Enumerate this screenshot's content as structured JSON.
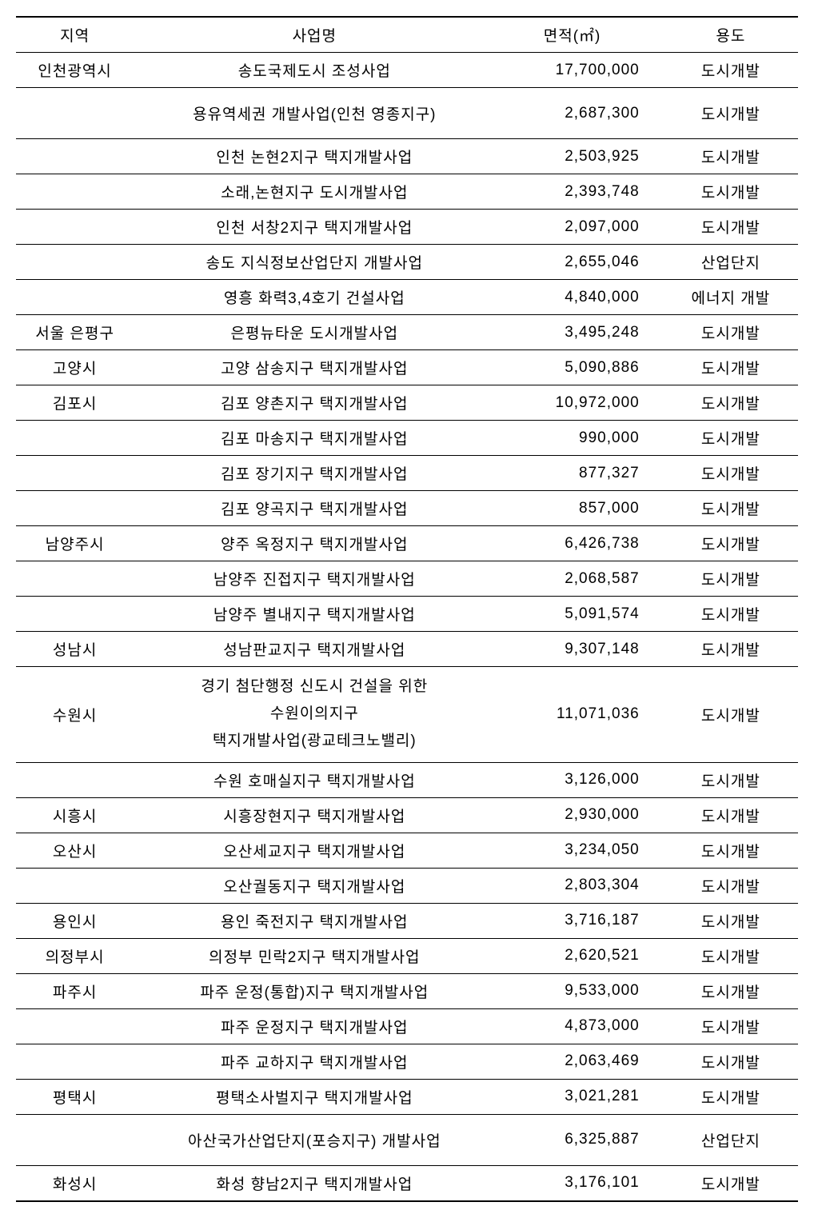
{
  "table": {
    "headers": {
      "region": "지역",
      "project": "사업명",
      "area": "면적(㎡)",
      "use": "용도"
    },
    "rows": [
      {
        "region": "인천광역시",
        "project": "송도국제도시 조성사업",
        "area": "17,700,000",
        "use": "도시개발",
        "tall": false
      },
      {
        "region": "",
        "project": "용유역세권 개발사업(인천 영종지구)",
        "area": "2,687,300",
        "use": "도시개발",
        "tall": true
      },
      {
        "region": "",
        "project": "인천 논현2지구 택지개발사업",
        "area": "2,503,925",
        "use": "도시개발",
        "tall": false
      },
      {
        "region": "",
        "project": "소래,논현지구 도시개발사업",
        "area": "2,393,748",
        "use": "도시개발",
        "tall": false
      },
      {
        "region": "",
        "project": "인천 서창2지구 택지개발사업",
        "area": "2,097,000",
        "use": "도시개발",
        "tall": false
      },
      {
        "region": "",
        "project": "송도 지식정보산업단지 개발사업",
        "area": "2,655,046",
        "use": "산업단지",
        "tall": false
      },
      {
        "region": "",
        "project": "영흥 화력3,4호기 건설사업",
        "area": "4,840,000",
        "use": "에너지 개발",
        "tall": false
      },
      {
        "region": "서울 은평구",
        "project": "은평뉴타운 도시개발사업",
        "area": "3,495,248",
        "use": "도시개발",
        "tall": false
      },
      {
        "region": "고양시",
        "project": "고양 삼송지구 택지개발사업",
        "area": "5,090,886",
        "use": "도시개발",
        "tall": false
      },
      {
        "region": "김포시",
        "project": "김포 양촌지구 택지개발사업",
        "area": "10,972,000",
        "use": "도시개발",
        "tall": false
      },
      {
        "region": "",
        "project": "김포 마송지구 택지개발사업",
        "area": "990,000",
        "use": "도시개발",
        "tall": false
      },
      {
        "region": "",
        "project": "김포 장기지구 택지개발사업",
        "area": "877,327",
        "use": "도시개발",
        "tall": false
      },
      {
        "region": "",
        "project": "김포 양곡지구 택지개발사업",
        "area": "857,000",
        "use": "도시개발",
        "tall": false
      },
      {
        "region": "남양주시",
        "project": "양주 옥정지구 택지개발사업",
        "area": "6,426,738",
        "use": "도시개발",
        "tall": false
      },
      {
        "region": "",
        "project": "남양주 진접지구 택지개발사업",
        "area": "2,068,587",
        "use": "도시개발",
        "tall": false
      },
      {
        "region": "",
        "project": "남양주 별내지구 택지개발사업",
        "area": "5,091,574",
        "use": "도시개발",
        "tall": false
      },
      {
        "region": "성남시",
        "project": "성남판교지구 택지개발사업",
        "area": "9,307,148",
        "use": "도시개발",
        "tall": false
      },
      {
        "region": "수원시",
        "project": "경기 첨단행정 신도시 건설을 위한\n수원이의지구\n택지개발사업(광교테크노밸리)",
        "area": "11,071,036",
        "use": "도시개발",
        "tall": false,
        "multiline": true
      },
      {
        "region": "",
        "project": "수원 호매실지구 택지개발사업",
        "area": "3,126,000",
        "use": "도시개발",
        "tall": false
      },
      {
        "region": "시흥시",
        "project": "시흥장현지구 택지개발사업",
        "area": "2,930,000",
        "use": "도시개발",
        "tall": false
      },
      {
        "region": "오산시",
        "project": "오산세교지구 택지개발사업",
        "area": "3,234,050",
        "use": "도시개발",
        "tall": false
      },
      {
        "region": "",
        "project": "오산궐동지구 택지개발사업",
        "area": "2,803,304",
        "use": "도시개발",
        "tall": false
      },
      {
        "region": "용인시",
        "project": "용인 죽전지구 택지개발사업",
        "area": "3,716,187",
        "use": "도시개발",
        "tall": false
      },
      {
        "region": "의정부시",
        "project": "의정부 민락2지구 택지개발사업",
        "area": "2,620,521",
        "use": "도시개발",
        "tall": false
      },
      {
        "region": "파주시",
        "project": "파주 운정(통합)지구 택지개발사업",
        "area": "9,533,000",
        "use": "도시개발",
        "tall": false
      },
      {
        "region": "",
        "project": "파주 운정지구 택지개발사업",
        "area": "4,873,000",
        "use": "도시개발",
        "tall": false
      },
      {
        "region": "",
        "project": "파주 교하지구 택지개발사업",
        "area": "2,063,469",
        "use": "도시개발",
        "tall": false
      },
      {
        "region": "평택시",
        "project": "평택소사벌지구 택지개발사업",
        "area": "3,021,281",
        "use": "도시개발",
        "tall": false
      },
      {
        "region": "",
        "project": "아산국가산업단지(포승지구) 개발사업",
        "area": "6,325,887",
        "use": "산업단지",
        "tall": true
      },
      {
        "region": "화성시",
        "project": "화성 향남2지구 택지개발사업",
        "area": "3,176,101",
        "use": "도시개발",
        "tall": false
      }
    ]
  },
  "styling": {
    "font_family": "Malgun Gothic",
    "font_size": 19,
    "text_color": "#000000",
    "border_color": "#000000",
    "background_color": "#ffffff",
    "letter_spacing": 1,
    "col_widths": {
      "region": "14%",
      "project": "43%",
      "area": "20%",
      "use": "16%"
    }
  }
}
